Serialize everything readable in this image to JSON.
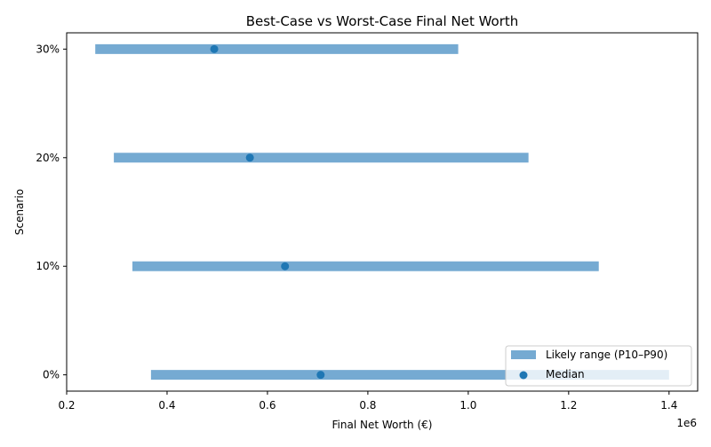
{
  "chart_data": {
    "type": "range",
    "title": "Best-Case vs Worst-Case Final Net Worth",
    "xlabel": "Final Net Worth (€)",
    "ylabel": "Scenario",
    "x_scale_label": "1e6",
    "xlim": [
      0.2,
      1.457
    ],
    "x_ticks": [
      0.2,
      0.4,
      0.6,
      0.8,
      1.0,
      1.2,
      1.4
    ],
    "x_tick_labels": [
      "0.2",
      "0.4",
      "0.6",
      "0.8",
      "1.0",
      "1.2",
      "1.4"
    ],
    "categories": [
      "0%",
      "10%",
      "20%",
      "30%"
    ],
    "series": [
      {
        "name": "Likely range (P10–P90)",
        "low": [
          0.368,
          0.331,
          0.294,
          0.257
        ],
        "high": [
          1.4,
          1.26,
          1.12,
          0.98
        ],
        "color": "#75aad2"
      },
      {
        "name": "Median",
        "values": [
          0.706,
          0.635,
          0.565,
          0.494
        ],
        "color": "#1f77b4"
      }
    ],
    "grid": false,
    "legend_position": "lower-right"
  }
}
